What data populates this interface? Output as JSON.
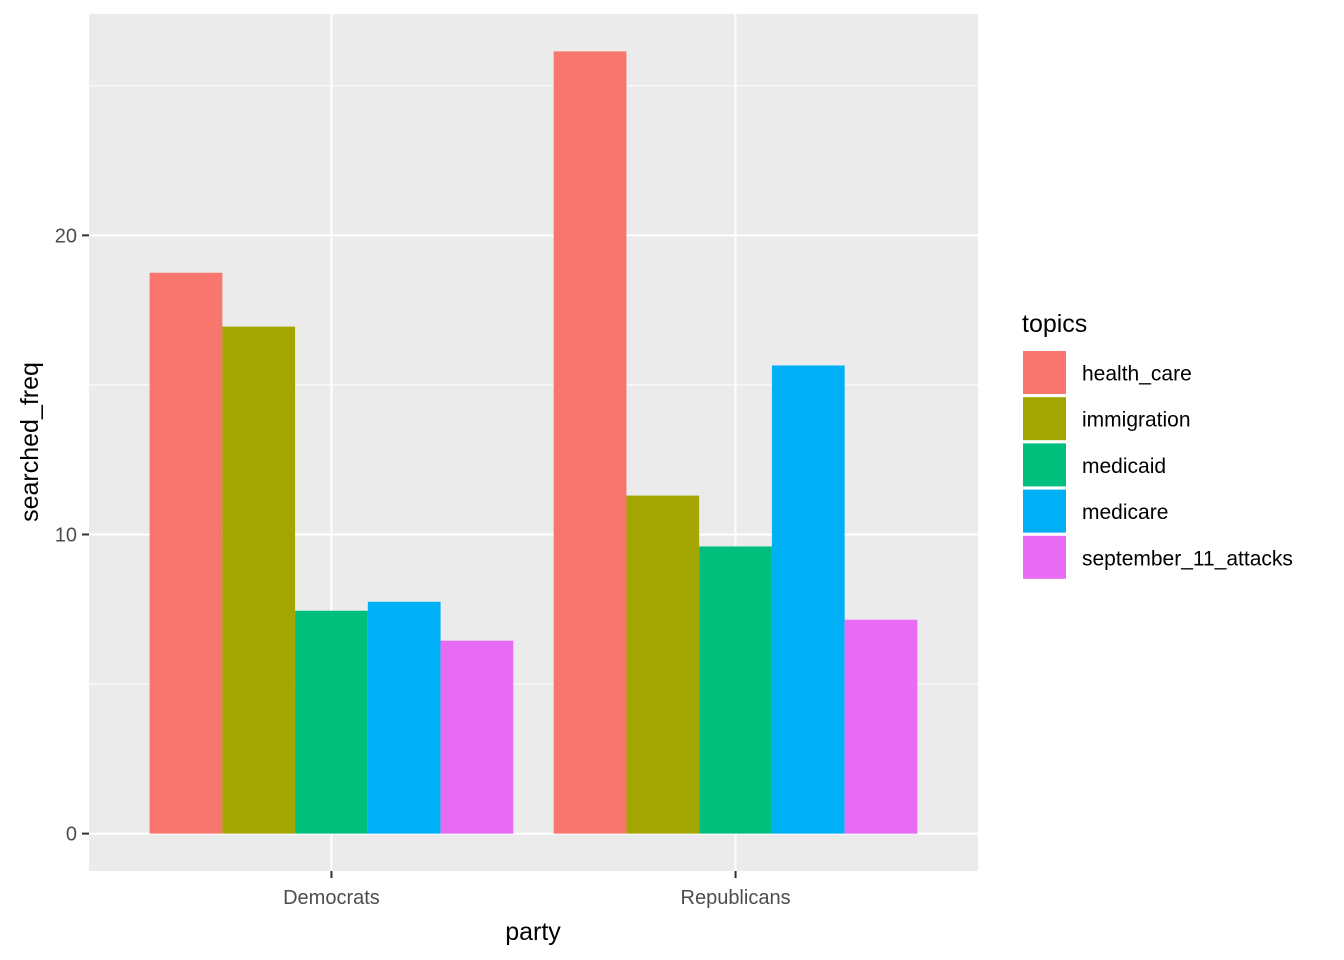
{
  "chart_data": {
    "type": "bar",
    "xlabel": "party",
    "ylabel": "searched_freq",
    "categories": [
      "Democrats",
      "Republicans"
    ],
    "ylim": [
      -1.25,
      27.4
    ],
    "y_ticks": [
      0,
      10,
      20
    ],
    "y_minor_ticks": [
      5,
      15,
      25
    ],
    "grid": true,
    "legend": {
      "title": "topics",
      "placement": "right"
    },
    "series": [
      {
        "name": "health_care",
        "color": "#F8766D",
        "values": [
          18.75,
          26.15
        ]
      },
      {
        "name": "immigration",
        "color": "#A3A500",
        "values": [
          16.95,
          11.3
        ]
      },
      {
        "name": "medicaid",
        "color": "#00BF7D",
        "values": [
          7.45,
          9.6
        ]
      },
      {
        "name": "medicare",
        "color": "#00B0F6",
        "values": [
          7.75,
          15.65
        ]
      },
      {
        "name": "september_11_attacks",
        "color": "#E76BF3",
        "values": [
          6.45,
          7.15
        ]
      }
    ],
    "colors": {
      "panel_background": "#EBEBEB",
      "grid_line": "#FFFFFF",
      "tick_mark": "#333333"
    }
  }
}
